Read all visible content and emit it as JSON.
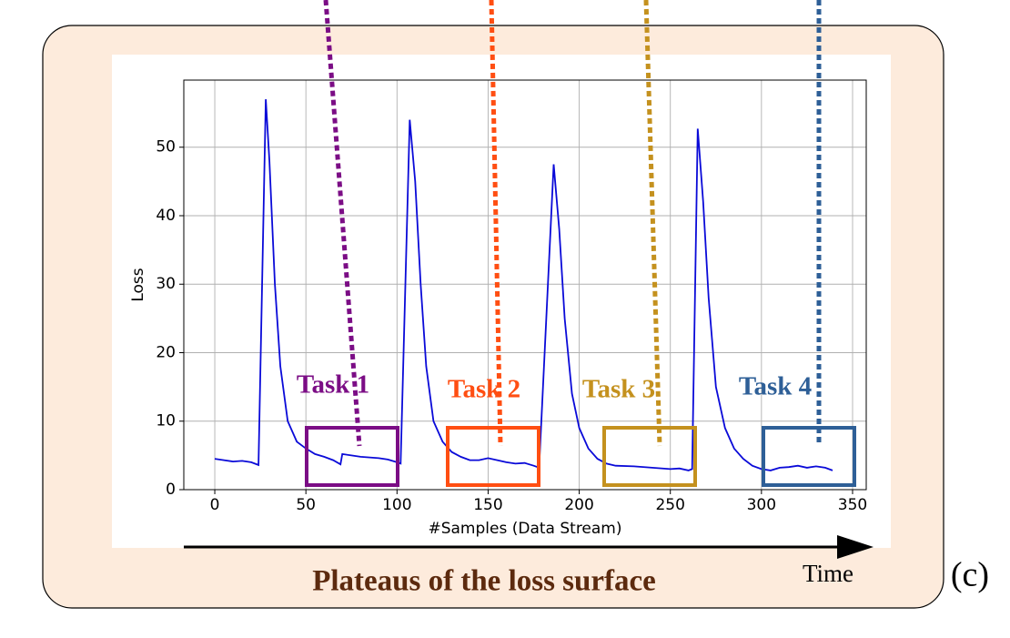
{
  "chart_data": {
    "type": "line",
    "title": "Plateaus of the loss surface",
    "panel_label": "(c)",
    "time_label": "Time",
    "x_label": "#Samples (Data Stream)",
    "y_label": "Loss",
    "xlim": [
      -17,
      357.5
    ],
    "ylim": [
      0,
      59.8
    ],
    "xticks": [
      0,
      50,
      100,
      150,
      200,
      250,
      300,
      350
    ],
    "yticks": [
      0,
      10,
      20,
      30,
      40,
      50
    ],
    "grid": true,
    "x": [
      0,
      5,
      10,
      15,
      20,
      24,
      28,
      30,
      33,
      36,
      40,
      45,
      50,
      55,
      60,
      65,
      69,
      70,
      75,
      80,
      85,
      90,
      95,
      100,
      102,
      107,
      110,
      113,
      116,
      120,
      125,
      130,
      135,
      140,
      145,
      150,
      155,
      160,
      165,
      170,
      175,
      178,
      186,
      189,
      192,
      196,
      200,
      205,
      210,
      215,
      220,
      230,
      240,
      250,
      255,
      260,
      262,
      265,
      268,
      271,
      275,
      280,
      285,
      290,
      295,
      300,
      305,
      310,
      315,
      320,
      325,
      330,
      335,
      339
    ],
    "series": [
      {
        "name": "Loss",
        "color": "#0a0ad8",
        "values": [
          4.5,
          4.3,
          4.1,
          4.2,
          4.0,
          3.6,
          57,
          48,
          30,
          18,
          10,
          7,
          6,
          5.2,
          4.8,
          4.3,
          3.7,
          5.2,
          5.0,
          4.8,
          4.7,
          4.6,
          4.4,
          4.0,
          3.8,
          54,
          45,
          30,
          18,
          10,
          7,
          5.5,
          4.8,
          4.3,
          4.3,
          4.6,
          4.3,
          4.0,
          3.8,
          3.9,
          3.5,
          3.2,
          47.5,
          38,
          25,
          14,
          9,
          6,
          4.5,
          3.8,
          3.5,
          3.4,
          3.2,
          3.0,
          3.1,
          2.8,
          3.0,
          52.7,
          42,
          28,
          15,
          9,
          6,
          4.5,
          3.5,
          3.0,
          2.8,
          3.2,
          3.3,
          3.5,
          3.2,
          3.4,
          3.2,
          2.8
        ]
      }
    ],
    "annotations": [
      {
        "text": "Task 1",
        "color": "#7b0d85"
      },
      {
        "text": "Task 2",
        "color": "#ff4e12"
      },
      {
        "text": "Task 3",
        "color": "#c4911e"
      },
      {
        "text": "Task 4",
        "color": "#2e5f97"
      }
    ]
  }
}
